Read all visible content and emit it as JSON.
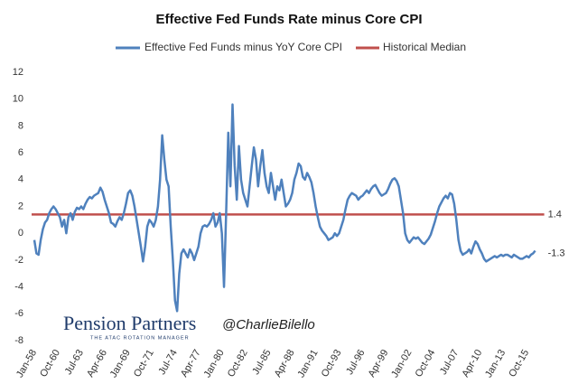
{
  "chart_data": {
    "type": "line",
    "title": "Effective Fed Funds Rate minus Core CPI",
    "categories": [
      "Jan-58",
      null,
      null,
      null,
      null,
      null,
      null,
      null,
      null,
      null,
      null,
      "Oct-60",
      null,
      null,
      null,
      null,
      null,
      null,
      null,
      null,
      null,
      null,
      "Jul-63",
      null,
      null,
      null,
      null,
      null,
      null,
      null,
      null,
      null,
      null,
      "Apr-66",
      null,
      null,
      null,
      null,
      null,
      null,
      null,
      null,
      null,
      null,
      "Jan-69",
      null,
      null,
      null,
      null,
      null,
      null,
      null,
      null,
      null,
      null,
      "Oct-71",
      null,
      null,
      null,
      null,
      null,
      null,
      null,
      null,
      null,
      null,
      "Jul-74",
      null,
      null,
      null,
      null,
      null,
      null,
      null,
      null,
      null,
      null,
      "Apr-77",
      null,
      null,
      null,
      null,
      null,
      null,
      null,
      null,
      null,
      null,
      "Jan-80",
      null,
      null,
      null,
      null,
      null,
      null,
      null,
      null,
      null,
      null,
      "Oct-82",
      null,
      null,
      null,
      null,
      null,
      null,
      null,
      null,
      null,
      null,
      "Jul-85",
      null,
      null,
      null,
      null,
      null,
      null,
      null,
      null,
      null,
      null,
      "Apr-88",
      null,
      null,
      null,
      null,
      null,
      null,
      null,
      null,
      null,
      null,
      "Jan-91",
      null,
      null,
      null,
      null,
      null,
      null,
      null,
      null,
      null,
      null,
      "Oct-93",
      null,
      null,
      null,
      null,
      null,
      null,
      null,
      null,
      null,
      null,
      "Jul-96",
      null,
      null,
      null,
      null,
      null,
      null,
      null,
      null,
      null,
      null,
      "Apr-99",
      null,
      null,
      null,
      null,
      null,
      null,
      null,
      null,
      null,
      null,
      "Jan-02",
      null,
      null,
      null,
      null,
      null,
      null,
      null,
      null,
      null,
      null,
      "Oct-04",
      null,
      null,
      null,
      null,
      null,
      null,
      null,
      null,
      null,
      null,
      "Jul-07",
      null,
      null,
      null,
      null,
      null,
      null,
      null,
      null,
      null,
      null,
      "Apr-10",
      null,
      null,
      null,
      null,
      null,
      null,
      null,
      null,
      null,
      null,
      "Jan-13",
      null,
      null,
      null,
      null,
      null,
      null,
      null,
      null,
      null,
      null,
      "Oct-15",
      null,
      null,
      null,
      null
    ],
    "series": [
      {
        "name": "Effective Fed Funds minus YoY Core CPI",
        "color": "#4f81bd",
        "values": [
          -0.5,
          -1.5,
          -1.6,
          -0.5,
          0.3,
          0.8,
          1.0,
          1.5,
          1.8,
          2.0,
          1.8,
          1.5,
          1.2,
          0.5,
          1.0,
          0.0,
          1.2,
          1.5,
          1.0,
          1.6,
          1.9,
          1.8,
          2.0,
          1.8,
          2.2,
          2.5,
          2.7,
          2.6,
          2.8,
          2.9,
          3.0,
          3.4,
          3.1,
          2.5,
          2.0,
          1.5,
          0.8,
          0.7,
          0.5,
          0.9,
          1.2,
          1.0,
          1.5,
          2.2,
          3.0,
          3.2,
          2.8,
          2.0,
          1.0,
          0.0,
          -1.0,
          -2.1,
          -1.0,
          0.5,
          1.0,
          0.8,
          0.5,
          1.0,
          2.0,
          4.0,
          7.3,
          5.5,
          4.0,
          3.5,
          0.5,
          -2.0,
          -5.0,
          -5.8,
          -3.0,
          -1.5,
          -1.2,
          -1.5,
          -1.8,
          -1.2,
          -1.5,
          -2.0,
          -1.5,
          -1.0,
          0.0,
          0.5,
          0.6,
          0.5,
          0.7,
          1.0,
          1.5,
          0.5,
          0.8,
          1.5,
          0.0,
          -4.0,
          1.5,
          7.5,
          3.5,
          9.6,
          5.0,
          2.5,
          6.5,
          4.0,
          3.0,
          2.5,
          2.0,
          3.5,
          5.0,
          6.4,
          5.5,
          3.5,
          5.0,
          6.2,
          4.5,
          3.5,
          3.0,
          4.5,
          3.5,
          2.5,
          3.5,
          3.2,
          4.0,
          3.0,
          2.0,
          2.2,
          2.5,
          3.0,
          4.0,
          4.5,
          5.2,
          5.0,
          4.2,
          4.0,
          4.5,
          4.2,
          3.8,
          3.0,
          2.0,
          1.2,
          0.5,
          0.2,
          0.0,
          -0.2,
          -0.5,
          -0.4,
          -0.3,
          0.0,
          -0.2,
          0.0,
          0.5,
          1.0,
          1.8,
          2.5,
          2.8,
          3.0,
          2.9,
          2.8,
          2.5,
          2.7,
          2.8,
          3.0,
          3.2,
          3.0,
          3.3,
          3.5,
          3.6,
          3.3,
          3.0,
          2.8,
          2.9,
          3.0,
          3.3,
          3.7,
          4.0,
          4.1,
          3.9,
          3.5,
          2.5,
          1.5,
          0.0,
          -0.5,
          -0.7,
          -0.5,
          -0.3,
          -0.4,
          -0.3,
          -0.5,
          -0.7,
          -0.8,
          -0.6,
          -0.4,
          -0.1,
          0.4,
          0.9,
          1.5,
          2.0,
          2.3,
          2.6,
          2.8,
          2.6,
          3.0,
          2.9,
          2.2,
          1.0,
          -0.5,
          -1.3,
          -1.6,
          -1.5,
          -1.4,
          -1.2,
          -1.5,
          -1.0,
          -0.6,
          -0.8,
          -1.2,
          -1.5,
          -1.9,
          -2.1,
          -2.0,
          -1.9,
          -1.8,
          -1.7,
          -1.8,
          -1.7,
          -1.6,
          -1.7,
          -1.6,
          -1.6,
          -1.7,
          -1.8,
          -1.6,
          -1.7,
          -1.8,
          -1.9,
          -1.9,
          -1.8,
          -1.7,
          -1.8,
          -1.6,
          -1.5,
          -1.3
        ]
      }
    ],
    "median": {
      "name": "Historical Median",
      "color": "#c0504d",
      "value": 1.4
    },
    "ylim": [
      -8,
      12
    ],
    "yticks": [
      -8,
      -6,
      -4,
      -2,
      0,
      2,
      4,
      6,
      8,
      10,
      12
    ],
    "grid": false,
    "legend": "top",
    "branding": {
      "logo": "Pension Partners",
      "tagline": "THE ATAC ROTATION MANAGER",
      "handle": "@CharlieBilello"
    }
  }
}
